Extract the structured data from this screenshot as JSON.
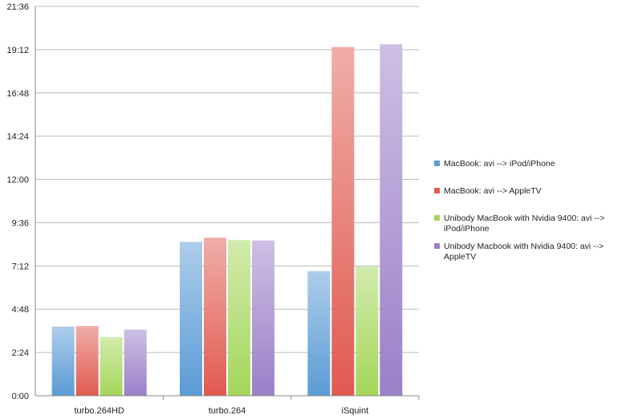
{
  "chart_data": {
    "type": "bar",
    "title": "",
    "xlabel": "",
    "ylabel": "",
    "categories": [
      "turbo.264HD",
      "turbo.264",
      "iSquint"
    ],
    "y_unit": "minutes (m:ss axis labels)",
    "ylim": [
      0,
      1296
    ],
    "yticks": [
      "0:00",
      "2:24",
      "4:48",
      "7:12",
      "9:36",
      "12:00",
      "14:24",
      "16:48",
      "19:12",
      "21:36"
    ],
    "grid": "horizontal lines only",
    "legend_position": "right",
    "series": [
      {
        "name": "MacBook: avi --> iPod/iPhone",
        "color": "#5b9bd5",
        "values": [
          230,
          512,
          415
        ]
      },
      {
        "name": "MacBook: avi --> AppleTV",
        "color": "#e05a50",
        "values": [
          232,
          526,
          1161
        ]
      },
      {
        "name": "Unibody MacBook with Nvidia 9400: avi --> iPod/iPhone",
        "color": "#a4d65a",
        "values": [
          195,
          518,
          430
        ]
      },
      {
        "name": "Unibody Macbook with Nvidia 9400: avi --> AppleTV",
        "color": "#9b7fc8",
        "values": [
          220,
          517,
          1170
        ]
      }
    ]
  }
}
